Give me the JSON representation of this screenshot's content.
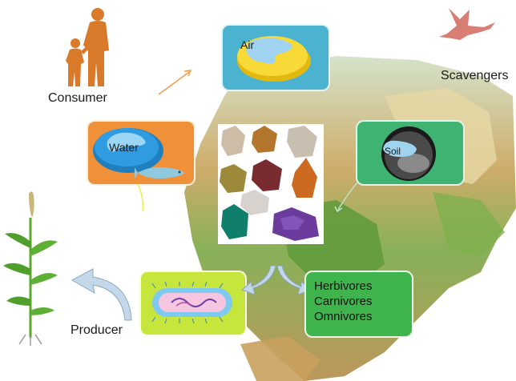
{
  "labels": {
    "consumer": "Consumer",
    "scavengers": "Scavengers",
    "producer": "Producer",
    "air": "Air",
    "water": "Water",
    "soil": "Soil"
  },
  "consumer_types": [
    "Herbivores",
    "Carnivores",
    "Omnivores"
  ],
  "colors": {
    "air_card": "#4bb3cf",
    "water_card": "#f0913a",
    "soil_card": "#3fb472",
    "bacteria_card": "#c6e63e",
    "consumer_card": "#3fb44c",
    "person_silhouette": "#d9792a",
    "bird_silhouette": "#d87e74",
    "arrow": "#c4d8ea"
  },
  "icons": [
    "person-silhouette-icon",
    "bird-icon",
    "plant-icon",
    "fish-icon",
    "bacteria-icon",
    "minerals-photo",
    "map-background"
  ]
}
